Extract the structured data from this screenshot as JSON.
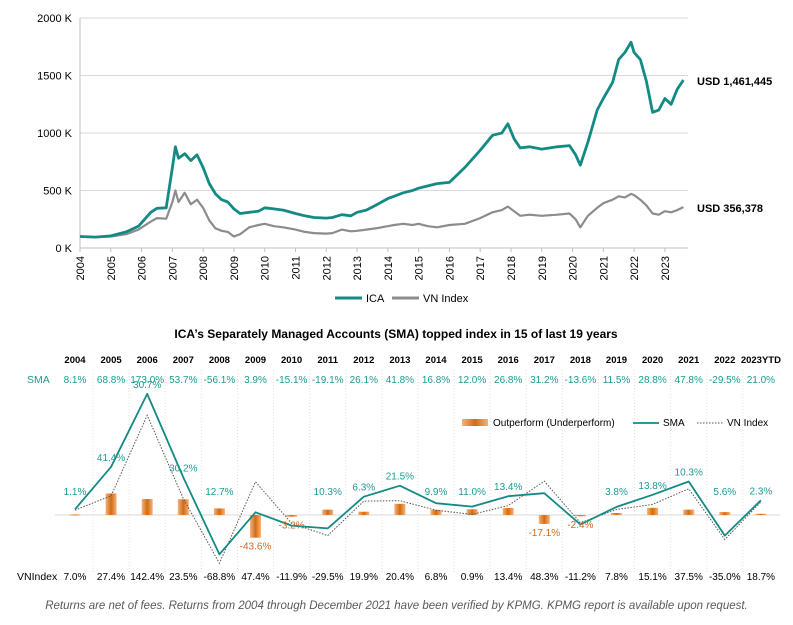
{
  "colors": {
    "ica": "#138a84",
    "vn": "#8c8c8c",
    "bar": "#d26b14",
    "sma_text": "#1a9b94",
    "neg_text": "#d2691e",
    "text": "#000000"
  },
  "footnote": "Returns are net of fees. Returns from 2004 through December 2021 have been verified by KPMG. KPMG report is available upon request.",
  "chart_data": [
    {
      "type": "line",
      "title": "",
      "xlabel": "",
      "ylabel": "",
      "ylim": [
        0,
        2000
      ],
      "y_ticks": [
        "0 K",
        "500 K",
        "1000 K",
        "1500 K",
        "2000 K"
      ],
      "x_ticks": [
        "2004",
        "2005",
        "2006",
        "2007",
        "2008",
        "2009",
        "2010",
        "2011",
        "2012",
        "2013",
        "2014",
        "2015",
        "2016",
        "2017",
        "2018",
        "2019",
        "2020",
        "2021",
        "2022",
        "2023"
      ],
      "x": [
        2004.0,
        2004.5,
        2005.0,
        2005.5,
        2005.9,
        2006.3,
        2006.5,
        2006.8,
        2007.0,
        2007.1,
        2007.2,
        2007.4,
        2007.6,
        2007.8,
        2008.0,
        2008.2,
        2008.4,
        2008.6,
        2008.8,
        2009.0,
        2009.2,
        2009.5,
        2009.8,
        2010.0,
        2010.3,
        2010.6,
        2011.0,
        2011.3,
        2011.6,
        2012.0,
        2012.2,
        2012.5,
        2012.8,
        2013.0,
        2013.3,
        2013.6,
        2014.0,
        2014.2,
        2014.5,
        2014.8,
        2015.0,
        2015.3,
        2015.6,
        2016.0,
        2016.5,
        2017.0,
        2017.4,
        2017.7,
        2017.9,
        2018.1,
        2018.3,
        2018.6,
        2019.0,
        2019.5,
        2019.9,
        2020.1,
        2020.25,
        2020.5,
        2020.8,
        2021.0,
        2021.3,
        2021.5,
        2021.7,
        2021.9,
        2022.0,
        2022.2,
        2022.4,
        2022.6,
        2022.8,
        2023.0,
        2023.2,
        2023.4,
        2023.6
      ],
      "series": [
        {
          "name": "ICA",
          "values": [
            100,
            95,
            105,
            140,
            190,
            310,
            345,
            350,
            700,
            880,
            780,
            820,
            760,
            810,
            700,
            560,
            470,
            420,
            400,
            340,
            300,
            310,
            320,
            350,
            340,
            330,
            300,
            280,
            265,
            260,
            265,
            290,
            280,
            310,
            330,
            370,
            430,
            450,
            480,
            500,
            520,
            540,
            560,
            570,
            700,
            850,
            980,
            1000,
            1080,
            950,
            870,
            880,
            860,
            880,
            890,
            810,
            720,
            920,
            1200,
            1300,
            1440,
            1640,
            1700,
            1790,
            1700,
            1640,
            1450,
            1180,
            1200,
            1300,
            1250,
            1380,
            1461
          ]
        },
        {
          "name": "VN Index",
          "values": [
            100,
            95,
            100,
            120,
            160,
            230,
            260,
            255,
            400,
            500,
            400,
            480,
            380,
            420,
            350,
            240,
            170,
            150,
            140,
            100,
            120,
            180,
            200,
            210,
            190,
            180,
            160,
            140,
            130,
            125,
            130,
            160,
            145,
            150,
            160,
            170,
            190,
            200,
            210,
            200,
            210,
            190,
            180,
            200,
            210,
            260,
            310,
            330,
            360,
            320,
            280,
            290,
            280,
            290,
            300,
            250,
            180,
            280,
            350,
            390,
            420,
            450,
            440,
            470,
            460,
            420,
            370,
            300,
            290,
            320,
            310,
            330,
            356
          ]
        }
      ],
      "end_labels": [
        "USD 1,461,445",
        "USD 356,378"
      ],
      "legend": [
        "ICA",
        "VN Index"
      ],
      "legend_position": "bottom"
    },
    {
      "type": "line",
      "title": "ICA’s Separately Managed Accounts (SMA) topped index in 15 of last 19 years",
      "categories": [
        "2004",
        "2005",
        "2006",
        "2007",
        "2008",
        "2009",
        "2010",
        "2011",
        "2012",
        "2013",
        "2014",
        "2015",
        "2016",
        "2017",
        "2018",
        "2019",
        "2020",
        "2021",
        "2022",
        "2023YTD"
      ],
      "row_label_sma": "SMA",
      "row_label_vn": "VNIndex",
      "sma_labels": [
        "8.1%",
        "68.8%",
        "173.0%",
        "53.7%",
        "-56.1%",
        "3.9%",
        "-15.1%",
        "-19.1%",
        "26.1%",
        "41.8%",
        "16.8%",
        "12.0%",
        "26.8%",
        "31.2%",
        "-13.6%",
        "11.5%",
        "28.8%",
        "47.8%",
        "-29.5%",
        "21.0%"
      ],
      "vn_labels": [
        "7.0%",
        "27.4%",
        "142.4%",
        "23.5%",
        "-68.8%",
        "47.4%",
        "-11.9%",
        "-29.5%",
        "19.9%",
        "20.4%",
        "6.8%",
        "0.9%",
        "13.4%",
        "48.3%",
        "-11.2%",
        "7.8%",
        "15.1%",
        "37.5%",
        "-35.0%",
        "18.7%"
      ],
      "diff_labels": [
        "1.1%",
        "41.4%",
        "30.7%",
        "30.2%",
        "12.7%",
        "-43.6%",
        "-3.2%",
        "10.3%",
        "6.3%",
        "21.5%",
        "9.9%",
        "11.0%",
        "13.4%",
        "-17.1%",
        "-2.4%",
        "3.8%",
        "13.8%",
        "10.3%",
        "5.6%",
        "2.3%"
      ],
      "series": [
        {
          "name": "Outperform (Underperform)",
          "values": [
            1.1,
            41.4,
            30.7,
            30.2,
            12.7,
            -43.6,
            -3.2,
            10.3,
            6.3,
            21.5,
            9.9,
            11.0,
            13.4,
            -17.1,
            -2.4,
            3.8,
            13.8,
            10.3,
            5.6,
            2.3
          ]
        },
        {
          "name": "SMA",
          "values": [
            8.1,
            68.8,
            173.0,
            53.7,
            -56.1,
            3.9,
            -15.1,
            -19.1,
            26.1,
            41.8,
            16.8,
            12.0,
            26.8,
            31.2,
            -13.6,
            11.5,
            28.8,
            47.8,
            -29.5,
            21.0
          ]
        },
        {
          "name": "VN Index",
          "values": [
            7.0,
            27.4,
            142.4,
            23.5,
            -68.8,
            47.4,
            -11.9,
            -29.5,
            19.9,
            20.4,
            6.8,
            0.9,
            13.4,
            48.3,
            -11.2,
            7.8,
            15.1,
            37.5,
            -35.0,
            18.7
          ]
        }
      ],
      "legend": [
        "Outperform (Underperform)",
        "SMA",
        "VN Index"
      ],
      "legend_position": "right"
    }
  ]
}
